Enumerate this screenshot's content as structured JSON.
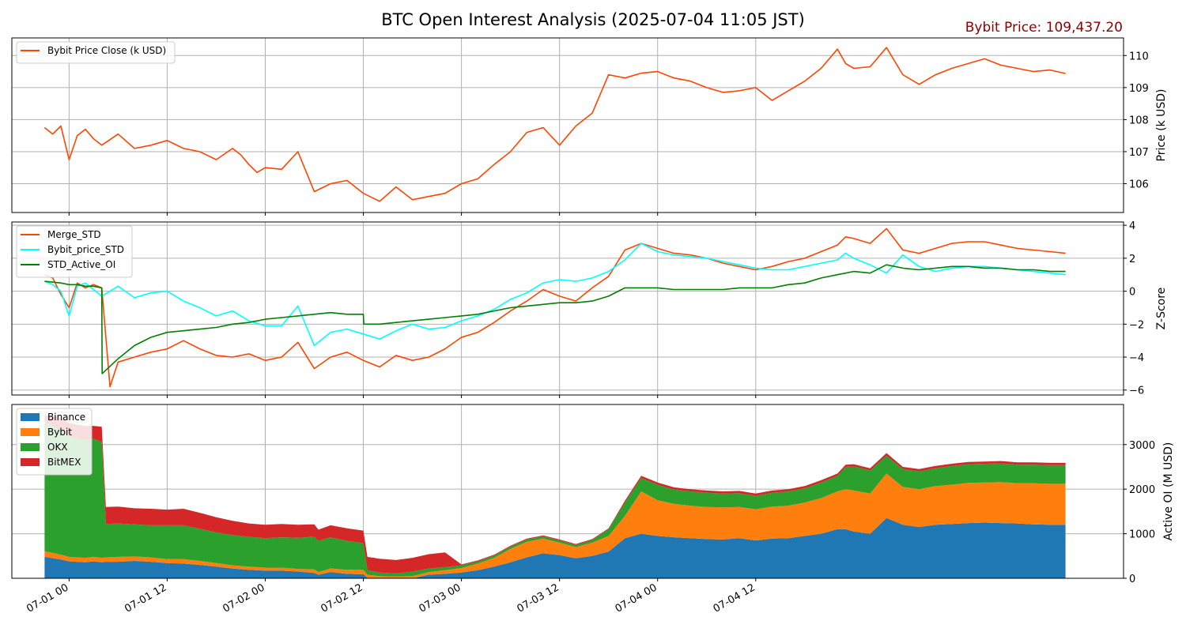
{
  "title": "BTC Open Interest Analysis (2025-07-04 11:05 JST)",
  "price_note": "Bybit Price: 109,437.20",
  "x_ticks": [
    "07-01 00",
    "07-01 12",
    "07-02 00",
    "07-02 12",
    "07-03 00",
    "07-03 12",
    "07-04 00",
    "07-04 12"
  ],
  "chart_data": [
    {
      "type": "line",
      "ylabel": "Price (k USD)",
      "ylim": [
        105.1,
        110.55
      ],
      "yticks": [
        "106",
        "107",
        "108",
        "109",
        "110"
      ],
      "grid": true,
      "legend": "top-left",
      "x_unit": "hours since 07-01 00:00",
      "series": [
        {
          "name": "Bybit Price Close (k USD)",
          "color": "#ff4500",
          "x": [
            -3,
            -2,
            -1,
            0,
            1,
            2,
            3,
            4,
            6,
            8,
            10,
            12,
            14,
            16,
            18,
            20,
            21,
            22,
            23,
            24,
            26,
            28,
            30,
            32,
            34,
            36,
            38,
            40,
            42,
            44,
            46,
            48,
            50,
            52,
            54,
            56,
            58,
            60,
            62,
            64,
            66,
            68,
            70,
            72,
            74,
            76,
            78,
            80,
            82,
            84,
            86,
            88,
            90,
            92,
            94,
            95,
            96,
            98,
            100,
            102,
            104,
            106,
            108,
            110,
            112,
            114,
            116,
            118,
            120,
            121.9
          ],
          "y": [
            107.75,
            107.55,
            107.8,
            106.75,
            107.5,
            107.7,
            107.4,
            107.2,
            107.55,
            107.1,
            107.2,
            107.35,
            107.1,
            107.0,
            106.75,
            107.1,
            106.9,
            106.6,
            106.35,
            106.5,
            106.45,
            107.0,
            105.75,
            106.0,
            106.1,
            105.7,
            105.45,
            105.9,
            105.5,
            105.6,
            105.7,
            106.0,
            106.15,
            106.6,
            107.0,
            107.6,
            107.75,
            107.2,
            107.8,
            108.2,
            109.4,
            109.3,
            109.45,
            109.5,
            109.3,
            109.2,
            109.0,
            108.85,
            108.9,
            109.0,
            108.6,
            108.9,
            109.2,
            109.6,
            110.2,
            109.75,
            109.6,
            109.65,
            110.25,
            109.4,
            109.1,
            109.4,
            109.6,
            109.75,
            109.9,
            109.7,
            109.6,
            109.5,
            109.55,
            109.44
          ]
        }
      ]
    },
    {
      "type": "line",
      "ylabel": "Z-Score",
      "ylim": [
        -6.3,
        4.2
      ],
      "yticks": [
        "−6",
        "−4",
        "−2",
        "0",
        "2",
        "4"
      ],
      "grid": true,
      "legend": "top-left",
      "x_unit": "hours since 07-01 00:00",
      "series": [
        {
          "name": "Merge_STD",
          "color": "#ff4500",
          "x": [
            -3,
            -2,
            -1,
            0,
            1,
            2,
            3,
            4,
            5,
            6,
            8,
            10,
            12,
            14,
            16,
            18,
            20,
            22,
            24,
            26,
            28,
            30,
            32,
            34,
            36,
            38,
            40,
            42,
            44,
            46,
            48,
            50,
            52,
            54,
            56,
            58,
            60,
            62,
            64,
            66,
            68,
            70,
            72,
            74,
            76,
            78,
            80,
            82,
            84,
            86,
            88,
            90,
            92,
            94,
            95,
            96,
            98,
            100,
            102,
            104,
            106,
            108,
            110,
            112,
            114,
            116,
            118,
            120,
            121.9
          ],
          "y": [
            1.0,
            0.8,
            -0.2,
            -1.0,
            0.5,
            0.2,
            0.4,
            0.2,
            -5.8,
            -4.3,
            -4.0,
            -3.7,
            -3.5,
            -3.0,
            -3.5,
            -3.9,
            -4.0,
            -3.8,
            -4.2,
            -4.0,
            -3.1,
            -4.7,
            -4.0,
            -3.7,
            -4.2,
            -4.6,
            -3.9,
            -4.2,
            -4.0,
            -3.5,
            -2.8,
            -2.5,
            -1.9,
            -1.2,
            -0.6,
            0.1,
            -0.3,
            -0.6,
            0.2,
            0.9,
            2.5,
            2.9,
            2.6,
            2.3,
            2.2,
            2.0,
            1.7,
            1.5,
            1.3,
            1.5,
            1.8,
            2.0,
            2.4,
            2.8,
            3.3,
            3.2,
            2.9,
            3.8,
            2.5,
            2.3,
            2.6,
            2.9,
            3.0,
            3.0,
            2.8,
            2.6,
            2.5,
            2.4,
            2.3
          ]
        },
        {
          "name": "Bybit_price_STD",
          "color": "#00ffff",
          "x": [
            -3,
            -2,
            -1,
            0,
            1,
            2,
            3,
            4,
            6,
            8,
            10,
            12,
            14,
            16,
            18,
            20,
            22,
            24,
            26,
            28,
            30,
            32,
            34,
            36,
            38,
            40,
            42,
            44,
            46,
            48,
            50,
            52,
            54,
            56,
            58,
            60,
            62,
            64,
            66,
            68,
            70,
            72,
            74,
            76,
            78,
            80,
            82,
            84,
            86,
            88,
            90,
            92,
            94,
            95,
            96,
            98,
            100,
            102,
            104,
            106,
            108,
            110,
            112,
            114,
            116,
            118,
            120,
            121.9
          ],
          "y": [
            0.6,
            0.4,
            0.0,
            -1.5,
            0.3,
            0.5,
            0.1,
            -0.3,
            0.3,
            -0.4,
            -0.1,
            0.0,
            -0.6,
            -1.0,
            -1.5,
            -1.2,
            -1.8,
            -2.1,
            -2.1,
            -0.9,
            -3.3,
            -2.5,
            -2.3,
            -2.6,
            -2.9,
            -2.4,
            -2.0,
            -2.3,
            -2.2,
            -1.8,
            -1.5,
            -1.1,
            -0.5,
            -0.1,
            0.5,
            0.7,
            0.6,
            0.8,
            1.2,
            1.9,
            2.9,
            2.4,
            2.2,
            2.1,
            2.0,
            1.8,
            1.6,
            1.4,
            1.3,
            1.3,
            1.5,
            1.7,
            1.9,
            2.3,
            2.0,
            1.6,
            1.1,
            2.2,
            1.5,
            1.2,
            1.4,
            1.5,
            1.5,
            1.4,
            1.3,
            1.2,
            1.1,
            1.0
          ]
        },
        {
          "name": "STD_Active_OI",
          "color": "#008000",
          "x": [
            -3,
            -1,
            0,
            1,
            2,
            3,
            4,
            4.05,
            6,
            8,
            10,
            12,
            14,
            16,
            18,
            20,
            22,
            24,
            26,
            28,
            30,
            32,
            34,
            36,
            36.05,
            38,
            40,
            42,
            44,
            46,
            48,
            50,
            52,
            54,
            56,
            58,
            60,
            62,
            64,
            66,
            68,
            70,
            72,
            74,
            76,
            78,
            80,
            82,
            84,
            86,
            88,
            90,
            92,
            94,
            95,
            96,
            98,
            100,
            102,
            104,
            106,
            108,
            110,
            112,
            114,
            116,
            118,
            120,
            121.9
          ],
          "y": [
            0.6,
            0.5,
            0.4,
            0.4,
            0.3,
            0.3,
            0.2,
            -5.0,
            -4.1,
            -3.3,
            -2.8,
            -2.5,
            -2.4,
            -2.3,
            -2.2,
            -2.0,
            -1.9,
            -1.7,
            -1.6,
            -1.5,
            -1.4,
            -1.3,
            -1.4,
            -1.4,
            -2.0,
            -2.0,
            -1.9,
            -1.8,
            -1.7,
            -1.6,
            -1.5,
            -1.4,
            -1.2,
            -1.0,
            -0.9,
            -0.8,
            -0.7,
            -0.7,
            -0.6,
            -0.3,
            0.2,
            0.2,
            0.2,
            0.1,
            0.1,
            0.1,
            0.1,
            0.2,
            0.2,
            0.2,
            0.4,
            0.5,
            0.8,
            1.0,
            1.1,
            1.2,
            1.1,
            1.6,
            1.4,
            1.3,
            1.4,
            1.5,
            1.5,
            1.4,
            1.4,
            1.3,
            1.3,
            1.2,
            1.2
          ]
        }
      ]
    },
    {
      "type": "area",
      "stacked": true,
      "ylabel": "Active OI (M USD)",
      "ylim": [
        0,
        3900
      ],
      "yticks": [
        "0",
        "1000",
        "2000",
        "3000"
      ],
      "grid": true,
      "legend": "top-left",
      "x_unit": "hours since 07-01 00:00",
      "x": [
        -3,
        -1,
        0,
        2,
        3,
        4,
        4.5,
        6,
        8,
        10,
        12,
        14,
        16,
        18,
        20,
        22,
        24,
        26,
        28,
        30,
        30.5,
        32,
        34,
        36,
        36.5,
        38,
        40,
        42,
        44,
        46,
        48,
        50,
        52,
        54,
        56,
        58,
        60,
        62,
        64,
        66,
        68,
        70,
        72,
        74,
        76,
        78,
        80,
        82,
        84,
        86,
        88,
        90,
        92,
        94,
        95,
        96,
        98,
        100,
        102,
        104,
        106,
        108,
        110,
        112,
        114,
        116,
        118,
        120,
        121.9
      ],
      "series": [
        {
          "name": "Binance",
          "color": "#1f77b4",
          "values": [
            480,
            420,
            380,
            360,
            380,
            360,
            370,
            370,
            390,
            370,
            340,
            330,
            300,
            260,
            220,
            190,
            170,
            170,
            150,
            120,
            80,
            140,
            100,
            90,
            10,
            0,
            0,
            0,
            80,
            100,
            130,
            180,
            260,
            360,
            470,
            560,
            520,
            450,
            500,
            600,
            900,
            1000,
            950,
            920,
            900,
            880,
            870,
            900,
            850,
            890,
            900,
            950,
            1000,
            1100,
            1100,
            1050,
            1000,
            1350,
            1200,
            1150,
            1200,
            1220,
            1240,
            1250,
            1240,
            1230,
            1210,
            1200,
            1200
          ]
        },
        {
          "name": "Bybit",
          "color": "#ff7f0e",
          "values": [
            130,
            110,
            100,
            100,
            100,
            100,
            100,
            110,
            100,
            100,
            90,
            100,
            90,
            80,
            70,
            70,
            70,
            70,
            60,
            80,
            60,
            80,
            90,
            100,
            70,
            50,
            40,
            50,
            60,
            80,
            100,
            150,
            200,
            300,
            350,
            330,
            280,
            250,
            300,
            350,
            500,
            950,
            800,
            750,
            730,
            720,
            720,
            700,
            700,
            720,
            730,
            750,
            800,
            850,
            900,
            920,
            900,
            1000,
            850,
            850,
            870,
            880,
            900,
            900,
            920,
            900,
            920,
            920,
            920
          ]
        },
        {
          "name": "OKX",
          "color": "#2ca02c",
          "values": [
            2900,
            2800,
            2700,
            2650,
            2650,
            2600,
            750,
            750,
            720,
            720,
            760,
            760,
            720,
            690,
            680,
            670,
            660,
            680,
            700,
            730,
            700,
            700,
            650,
            600,
            100,
            80,
            70,
            100,
            80,
            70,
            60,
            50,
            50,
            50,
            50,
            50,
            50,
            50,
            60,
            150,
            300,
            300,
            350,
            320,
            320,
            320,
            310,
            310,
            300,
            310,
            320,
            320,
            350,
            350,
            500,
            540,
            520,
            400,
            400,
            400,
            400,
            420,
            420,
            420,
            420,
            420,
            420,
            420,
            420
          ]
        },
        {
          "name": "BitMEX",
          "color": "#d62728",
          "values": [
            150,
            280,
            300,
            310,
            290,
            340,
            380,
            380,
            360,
            370,
            350,
            370,
            360,
            340,
            320,
            300,
            300,
            300,
            290,
            280,
            250,
            270,
            280,
            280,
            300,
            310,
            300,
            310,
            320,
            330,
            20,
            20,
            20,
            20,
            20,
            20,
            20,
            20,
            20,
            20,
            40,
            50,
            50,
            50,
            50,
            50,
            50,
            50,
            50,
            50,
            50,
            50,
            50,
            50,
            50,
            50,
            50,
            60,
            50,
            50,
            50,
            50,
            50,
            50,
            50,
            50,
            50,
            50,
            50
          ]
        }
      ]
    }
  ]
}
